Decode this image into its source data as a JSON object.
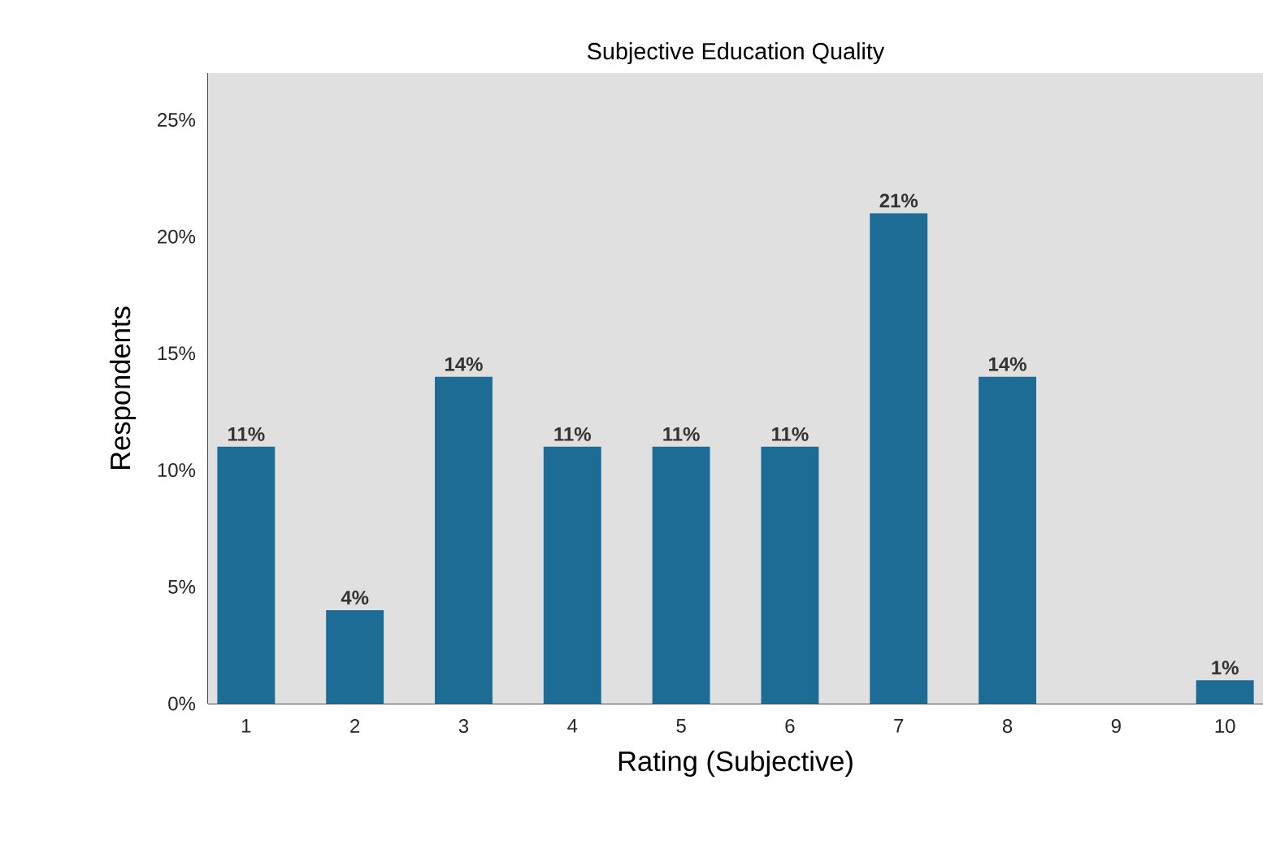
{
  "chart_data": {
    "type": "bar",
    "title": "Subjective Education Quality",
    "xlabel": "Rating (Subjective)",
    "ylabel": "Respondents",
    "categories": [
      "1",
      "2",
      "3",
      "4",
      "5",
      "6",
      "7",
      "8",
      "9",
      "10"
    ],
    "values": [
      11,
      4,
      14,
      11,
      11,
      11,
      21,
      14,
      0,
      1
    ],
    "value_labels": [
      "11%",
      "4%",
      "14%",
      "11%",
      "11%",
      "11%",
      "21%",
      "14%",
      null,
      "1%"
    ],
    "color": "#1d6c96",
    "ylim": [
      0,
      27
    ],
    "yticks": [
      {
        "value": 0,
        "label": "0%"
      },
      {
        "value": 5,
        "label": "5%"
      },
      {
        "value": 10,
        "label": "10%"
      },
      {
        "value": 15,
        "label": "15%"
      },
      {
        "value": 20,
        "label": "20%"
      },
      {
        "value": 25,
        "label": "25%"
      }
    ]
  }
}
